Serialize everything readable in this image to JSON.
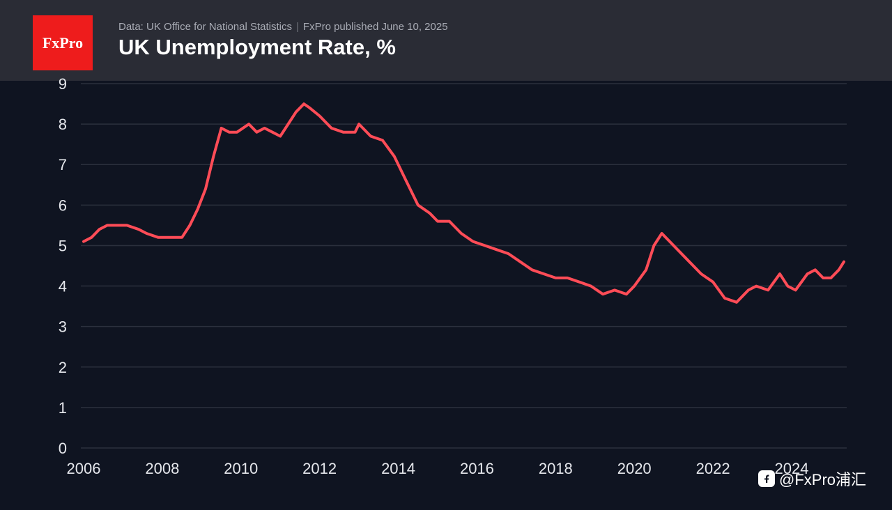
{
  "header": {
    "logo_text": "FxPro",
    "source": "Data: UK Office for National Statistics",
    "publisher": "FxPro published June 10, 2025",
    "title": "UK Unemployment Rate, %"
  },
  "watermark": {
    "text": "@FxPro浦汇",
    "icon": "social-platform-icon"
  },
  "colors": {
    "background": "#0f1421",
    "header": "#2a2c35",
    "line": "#ff4c57",
    "grid": "#2b303d",
    "text": "#e5e7ec",
    "logo": "#ee1c1c"
  },
  "chart_data": {
    "type": "line",
    "title": "UK Unemployment Rate, %",
    "xlabel": "",
    "ylabel": "",
    "xlim": [
      2006,
      2025.4
    ],
    "ylim": [
      0,
      9
    ],
    "x_ticks": [
      "2006",
      "2008",
      "2010",
      "2012",
      "2014",
      "2016",
      "2018",
      "2020",
      "2022",
      "2024"
    ],
    "y_ticks": [
      "0",
      "1",
      "2",
      "3",
      "4",
      "5",
      "6",
      "7",
      "8",
      "9"
    ],
    "grid": true,
    "legend": "none",
    "series": [
      {
        "x": [
          2006.0,
          2006.2,
          2006.4,
          2006.6,
          2006.9,
          2007.1,
          2007.4,
          2007.6,
          2007.9,
          2008.2,
          2008.3,
          2008.5,
          2008.7,
          2008.9,
          2009.1,
          2009.3,
          2009.5,
          2009.7,
          2009.9,
          2010.2,
          2010.4,
          2010.6,
          2010.8,
          2011.0,
          2011.2,
          2011.4,
          2011.6,
          2011.75,
          2012.0,
          2012.3,
          2012.6,
          2012.9,
          2013.0,
          2013.3,
          2013.6,
          2013.9,
          2014.2,
          2014.5,
          2014.8,
          2015.0,
          2015.3,
          2015.6,
          2015.9,
          2016.2,
          2016.5,
          2016.8,
          2017.1,
          2017.4,
          2017.7,
          2018.0,
          2018.3,
          2018.6,
          2018.9,
          2019.2,
          2019.5,
          2019.8,
          2020.0,
          2020.3,
          2020.5,
          2020.7,
          2020.9,
          2021.1,
          2021.4,
          2021.7,
          2022.0,
          2022.3,
          2022.6,
          2022.9,
          2023.1,
          2023.4,
          2023.7,
          2023.9,
          2024.1,
          2024.4,
          2024.6,
          2024.8,
          2025.0,
          2025.2,
          2025.33
        ],
        "values": [
          5.1,
          5.2,
          5.4,
          5.5,
          5.5,
          5.5,
          5.4,
          5.3,
          5.2,
          5.2,
          5.2,
          5.2,
          5.5,
          5.9,
          6.4,
          7.2,
          7.9,
          7.8,
          7.8,
          8.0,
          7.8,
          7.9,
          7.8,
          7.7,
          8.0,
          8.3,
          8.5,
          8.4,
          8.2,
          7.9,
          7.8,
          7.8,
          8.0,
          7.7,
          7.6,
          7.2,
          6.6,
          6.0,
          5.8,
          5.6,
          5.6,
          5.3,
          5.1,
          5.0,
          4.9,
          4.8,
          4.6,
          4.4,
          4.3,
          4.2,
          4.2,
          4.1,
          4.0,
          3.8,
          3.9,
          3.8,
          4.0,
          4.4,
          5.0,
          5.3,
          5.1,
          4.9,
          4.6,
          4.3,
          4.1,
          3.7,
          3.6,
          3.9,
          4.0,
          3.9,
          4.3,
          4.0,
          3.9,
          4.3,
          4.4,
          4.2,
          4.2,
          4.4,
          4.6
        ]
      }
    ]
  }
}
